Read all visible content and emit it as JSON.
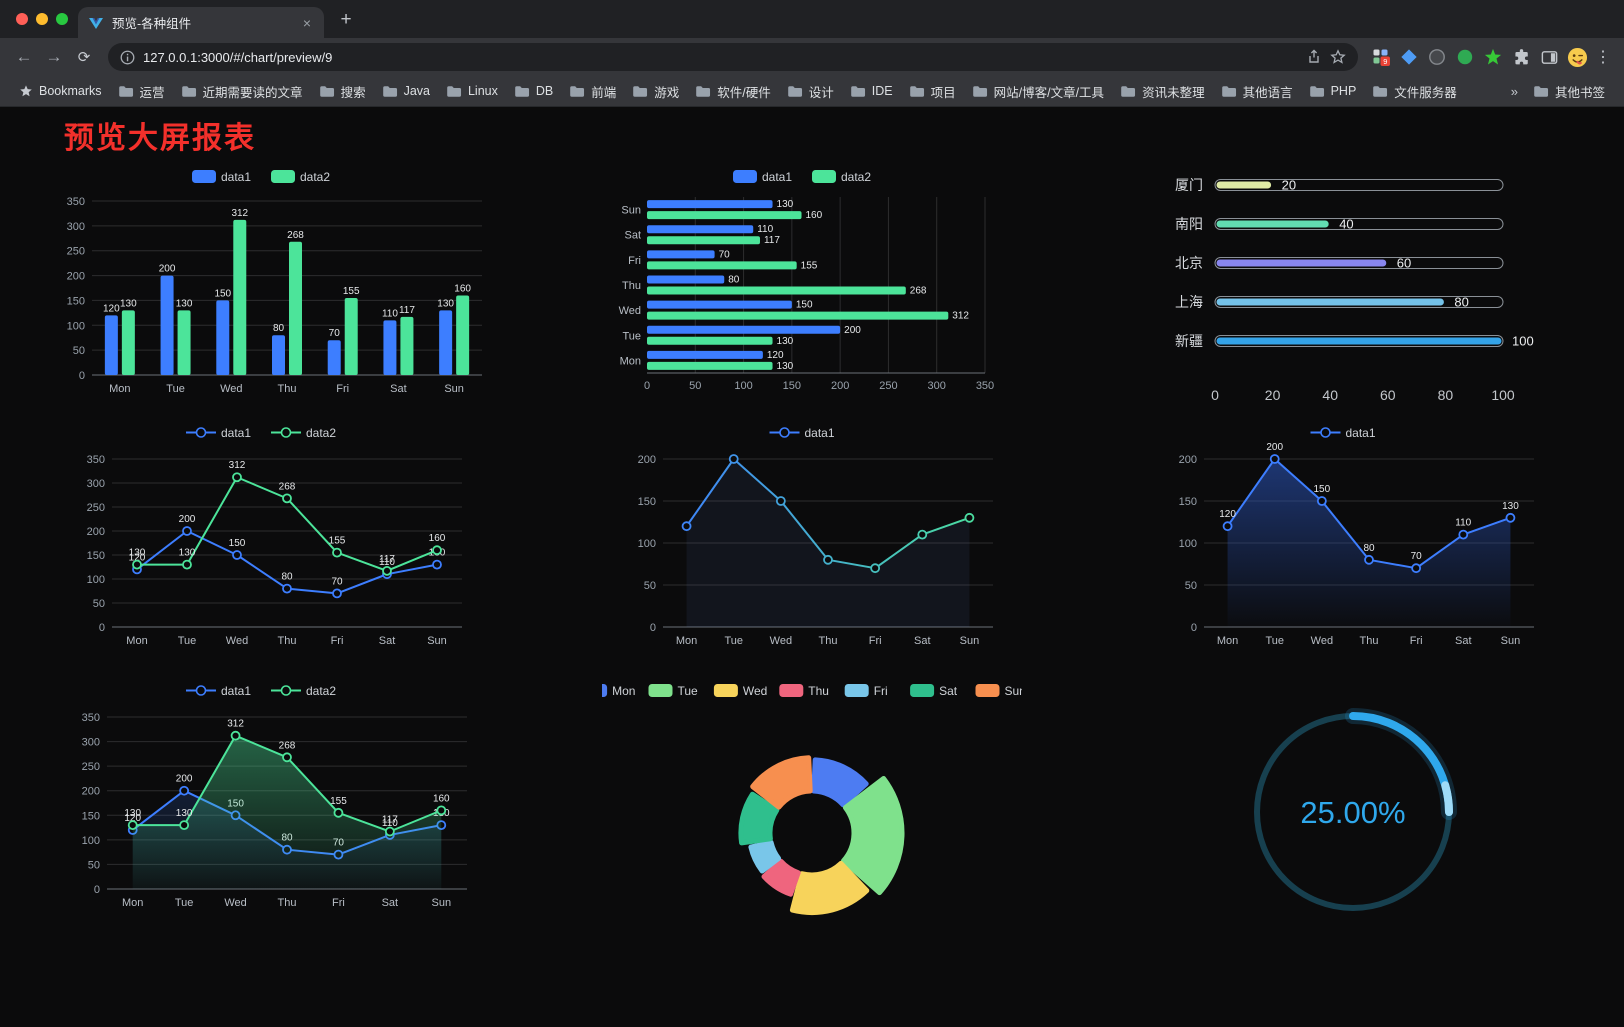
{
  "browser": {
    "tab": {
      "title": "预览-各种组件",
      "close": "×"
    },
    "new_tab": "+",
    "icons": {
      "back": "←",
      "forward": "→",
      "reload": "⟳",
      "menu_dots": "⋮"
    },
    "url": "127.0.0.1:3000/#/chart/preview/9",
    "extension_badge": "9",
    "bookmarks_bar": {
      "first_item": "Bookmarks",
      "folders": [
        "运营",
        "近期需要读的文章",
        "搜索",
        "Java",
        "Linux",
        "DB",
        "前端",
        "游戏",
        "软件/硬件",
        "设计",
        "IDE",
        "项目",
        "网站/博客/文章/工具",
        "资讯未整理",
        "其他语言",
        "PHP",
        "文件服务器"
      ],
      "overflow": "»",
      "other_bookmarks": "其他书签"
    }
  },
  "page": {
    "title": "预览大屏报表"
  },
  "chart_data": [
    {
      "id": "bar-grouped",
      "type": "bar",
      "categories": [
        "Mon",
        "Tue",
        "Wed",
        "Thu",
        "Fri",
        "Sat",
        "Sun"
      ],
      "series": [
        {
          "name": "data1",
          "color": "#3D7EFF",
          "values": [
            120,
            200,
            150,
            80,
            70,
            110,
            130
          ]
        },
        {
          "name": "data2",
          "color": "#4CE49A",
          "values": [
            130,
            130,
            312,
            268,
            155,
            117,
            160
          ]
        }
      ],
      "ylim": [
        0,
        350
      ],
      "ytick": 50,
      "labels": true
    },
    {
      "id": "bar-horizontal",
      "type": "hbar",
      "categories": [
        "Mon",
        "Tue",
        "Wed",
        "Thu",
        "Fri",
        "Sat",
        "Sun"
      ],
      "series": [
        {
          "name": "data1",
          "color": "#3D7EFF",
          "values": [
            120,
            200,
            150,
            80,
            70,
            110,
            130
          ]
        },
        {
          "name": "data2",
          "color": "#4CE49A",
          "values": [
            130,
            130,
            312,
            268,
            155,
            117,
            160
          ]
        }
      ],
      "xlim": [
        0,
        350
      ],
      "xtick": 50,
      "labels": true
    },
    {
      "id": "progress-bars",
      "type": "progress",
      "rows": [
        {
          "label": "厦门",
          "value": 20,
          "color": "#DFEAA5"
        },
        {
          "label": "南阳",
          "value": 40,
          "color": "#62DCB2"
        },
        {
          "label": "北京",
          "value": 60,
          "color": "#8886EF"
        },
        {
          "label": "上海",
          "value": 80,
          "color": "#74C2E9"
        },
        {
          "label": "新疆",
          "value": 100,
          "color": "#34A3E8"
        }
      ],
      "xlim": [
        0,
        100
      ],
      "xticks": [
        0,
        20,
        40,
        60,
        80,
        100
      ]
    },
    {
      "id": "line-two",
      "type": "line",
      "categories": [
        "Mon",
        "Tue",
        "Wed",
        "Thu",
        "Fri",
        "Sat",
        "Sun"
      ],
      "series": [
        {
          "name": "data1",
          "color": "#3D7EFF",
          "values": [
            120,
            200,
            150,
            80,
            70,
            110,
            130
          ]
        },
        {
          "name": "data2",
          "color": "#4CE49A",
          "values": [
            130,
            130,
            312,
            268,
            155,
            117,
            160
          ]
        }
      ],
      "ylim": [
        0,
        350
      ],
      "ytick": 50,
      "labels": true
    },
    {
      "id": "line-gradient",
      "type": "line",
      "categories": [
        "Mon",
        "Tue",
        "Wed",
        "Thu",
        "Fri",
        "Sat",
        "Sun"
      ],
      "series": [
        {
          "name": "data1",
          "gradient": [
            "#3D7EFF",
            "#4CE49A"
          ],
          "values": [
            120,
            200,
            150,
            80,
            70,
            110,
            130
          ],
          "area_opacity": 0.07
        }
      ],
      "ylim": [
        0,
        200
      ],
      "ytick": 50,
      "labels": false
    },
    {
      "id": "line-area",
      "type": "line",
      "categories": [
        "Mon",
        "Tue",
        "Wed",
        "Thu",
        "Fri",
        "Sat",
        "Sun"
      ],
      "series": [
        {
          "name": "data1",
          "color": "#3D7EFF",
          "values": [
            120,
            200,
            150,
            80,
            70,
            110,
            130
          ],
          "area": [
            "rgba(45,90,200,0.55)",
            "rgba(45,90,200,0.02)"
          ]
        }
      ],
      "ylim": [
        0,
        200
      ],
      "ytick": 50,
      "labels": true
    },
    {
      "id": "line-two-area",
      "type": "line",
      "categories": [
        "Mon",
        "Tue",
        "Wed",
        "Thu",
        "Fri",
        "Sat",
        "Sun"
      ],
      "series": [
        {
          "name": "data1",
          "color": "#3D7EFF",
          "values": [
            120,
            200,
            150,
            80,
            70,
            110,
            130
          ],
          "area": [
            "rgba(61,126,255,0.28)",
            "rgba(61,126,255,0.02)"
          ]
        },
        {
          "name": "data2",
          "color": "#4CE49A",
          "values": [
            130,
            130,
            312,
            268,
            155,
            117,
            160
          ],
          "area": [
            "rgba(76,228,154,0.45)",
            "rgba(76,228,154,0.03)"
          ]
        }
      ],
      "ylim": [
        0,
        350
      ],
      "ytick": 50,
      "labels": true
    },
    {
      "id": "rose-donut",
      "type": "donut",
      "slices": [
        {
          "label": "Mon",
          "value": 120,
          "color": "#4D7CF2"
        },
        {
          "label": "Tue",
          "value": 200,
          "color": "#7FE18C"
        },
        {
          "label": "Wed",
          "value": 150,
          "color": "#F7D35B"
        },
        {
          "label": "Thu",
          "value": 80,
          "color": "#EF657E"
        },
        {
          "label": "Fri",
          "value": 70,
          "color": "#79C6E9"
        },
        {
          "label": "Sat",
          "value": 110,
          "color": "#2FBF8D"
        },
        {
          "label": "Sun",
          "value": 130,
          "color": "#F78F4F"
        }
      ]
    },
    {
      "id": "gauge",
      "type": "gauge",
      "percent": 25,
      "value_label": "25.00%",
      "color": "#2FA8EC",
      "track_color": "#17404F"
    }
  ]
}
